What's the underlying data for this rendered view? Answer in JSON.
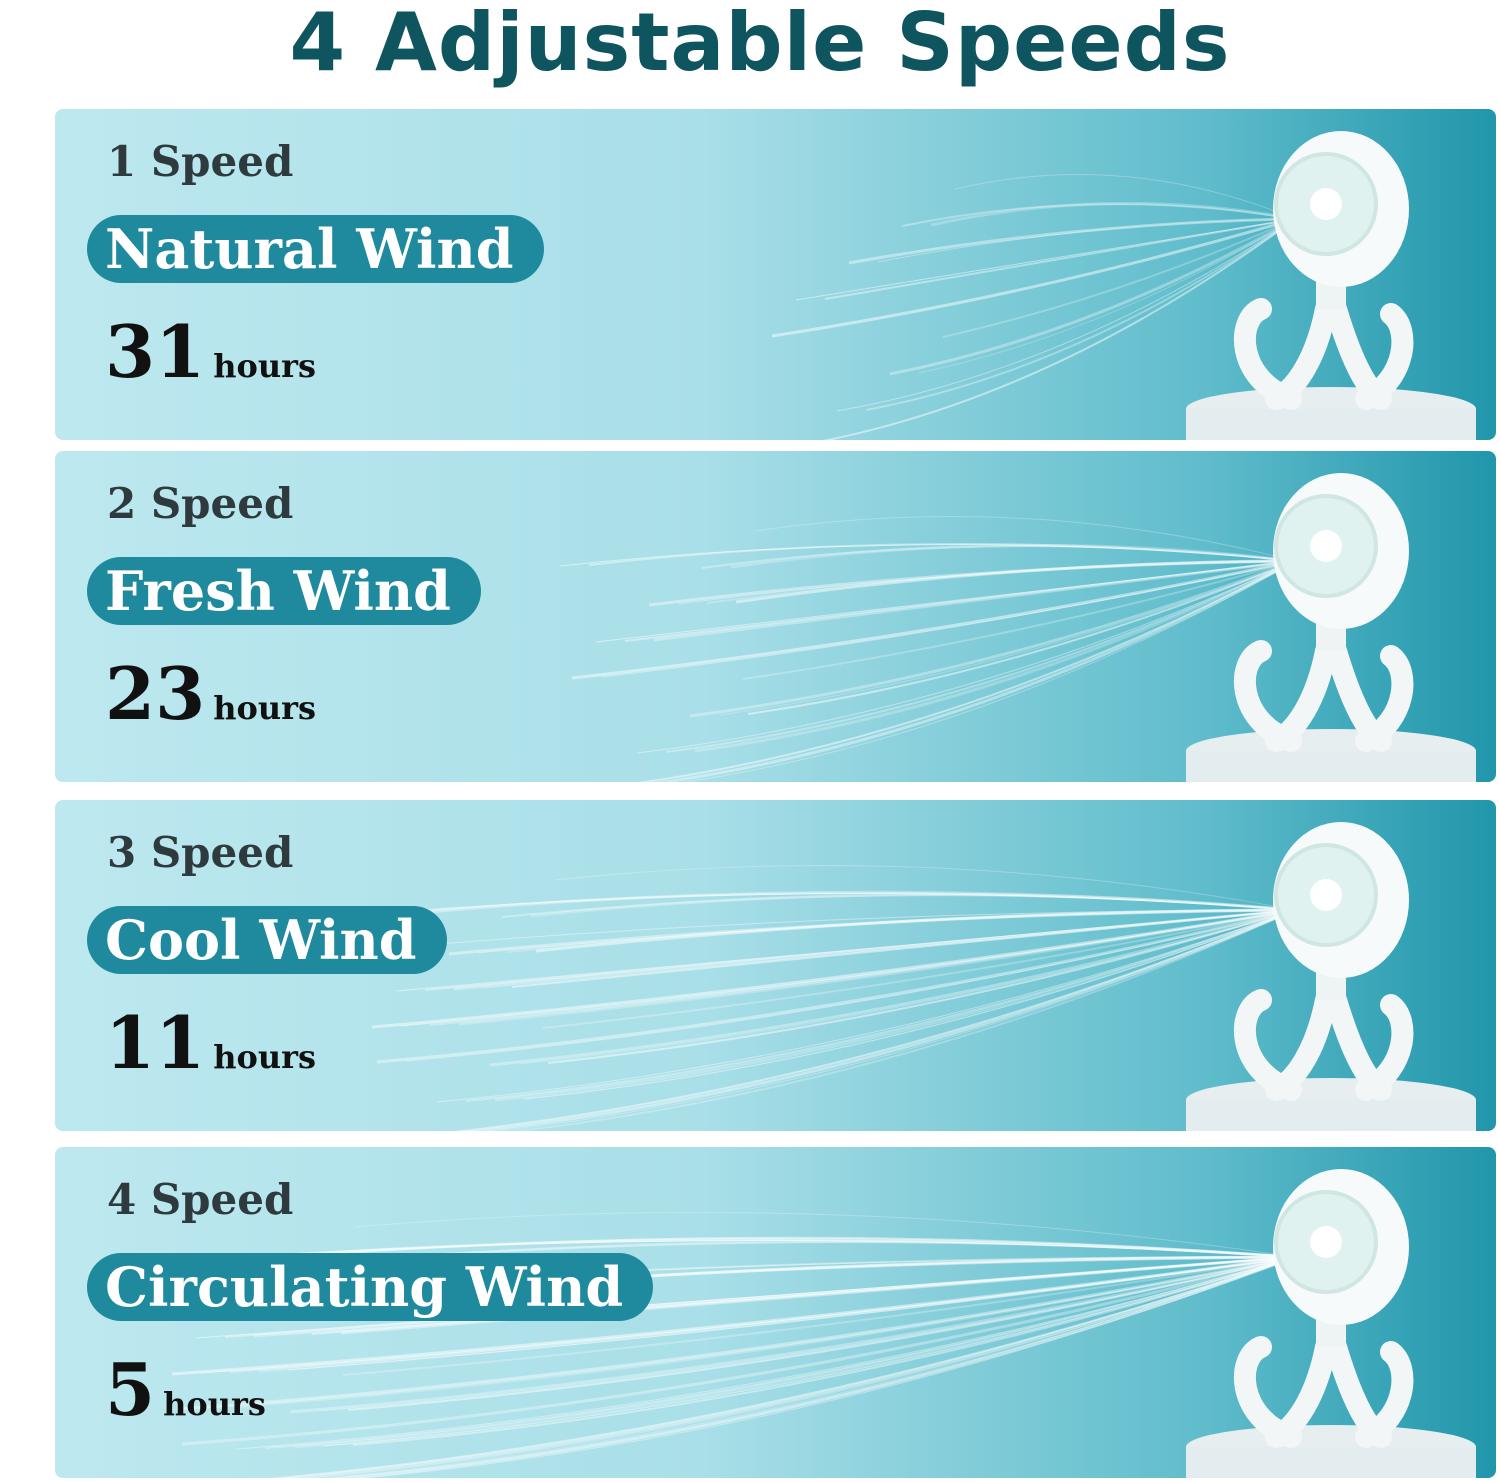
{
  "title": "4 Adjustable Speeds",
  "accent_color": "#1f8a9e",
  "title_color": "#0f5560",
  "speeds": [
    {
      "speed": "1 Speed",
      "mode": "Natural Wind",
      "hours": "31",
      "unit": "hours"
    },
    {
      "speed": "2 Speed",
      "mode": "Fresh Wind",
      "hours": "23",
      "unit": "hours"
    },
    {
      "speed": "3 Speed",
      "mode": "Cool Wind",
      "hours": "11",
      "unit": "hours"
    },
    {
      "speed": "4 Speed",
      "mode": "Circulating Wind",
      "hours": "5",
      "unit": "hours"
    }
  ]
}
